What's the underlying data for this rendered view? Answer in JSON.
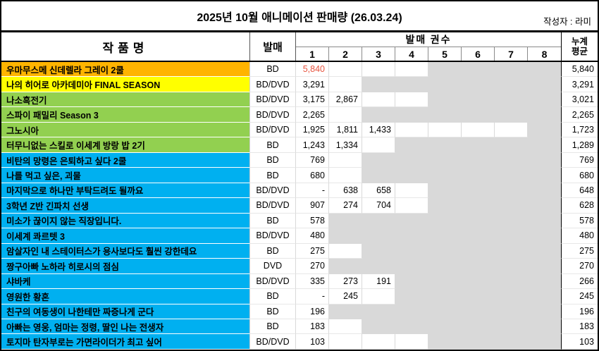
{
  "title": "2025년 10월 애니메이션 판매량 (26.03.24)",
  "author": "작성자 : 라미",
  "header": {
    "work_title": "작품명",
    "release": "발매",
    "release_volumes": "발매 권수",
    "cumulative_l1": "누계",
    "cumulative_l2": "평균"
  },
  "colors": {
    "orange": "#ffb400",
    "yellow": "#ffff00",
    "green": "#92d050",
    "blue": "#00b0f0",
    "gray_cell": "#d9d9d9",
    "red_text": "#e8543f"
  },
  "chart_data": {
    "type": "table",
    "title": "2025년 10월 애니메이션 판매량 (26.03.24)",
    "columns": [
      "작품명",
      "발매",
      "1",
      "2",
      "3",
      "4",
      "5",
      "6",
      "7",
      "8",
      "누계 평균"
    ],
    "vol_headers": [
      "1",
      "2",
      "3",
      "4",
      "5",
      "6",
      "7",
      "8"
    ],
    "rows": [
      {
        "title": "우마무스메 신데렐라 그레이 2쿨",
        "format": "BD",
        "color": "orange",
        "cells": [
          {
            "t": "5,840",
            "bg": "w",
            "red": true
          },
          {
            "t": "",
            "bg": "w"
          },
          {
            "t": "",
            "bg": "w"
          },
          {
            "t": "",
            "bg": "w"
          },
          {
            "t": "",
            "bg": "g"
          },
          {
            "t": "",
            "bg": "g"
          },
          {
            "t": "",
            "bg": "g"
          },
          {
            "t": "",
            "bg": "g"
          }
        ],
        "avg": "5,840"
      },
      {
        "title": "나의 히어로 아카데미아 FINAL SEASON",
        "format": "BD/DVD",
        "color": "yellow",
        "cells": [
          {
            "t": "3,291",
            "bg": "w"
          },
          {
            "t": "",
            "bg": "w"
          },
          {
            "t": "",
            "bg": "g"
          },
          {
            "t": "",
            "bg": "g"
          },
          {
            "t": "",
            "bg": "g"
          },
          {
            "t": "",
            "bg": "g"
          },
          {
            "t": "",
            "bg": "g"
          },
          {
            "t": "",
            "bg": "g"
          }
        ],
        "avg": "3,291"
      },
      {
        "title": "나소흑전기",
        "format": "BD/DVD",
        "color": "green",
        "cells": [
          {
            "t": "3,175",
            "bg": "w"
          },
          {
            "t": "2,867",
            "bg": "w"
          },
          {
            "t": "",
            "bg": "w"
          },
          {
            "t": "",
            "bg": "w"
          },
          {
            "t": "",
            "bg": "g"
          },
          {
            "t": "",
            "bg": "g"
          },
          {
            "t": "",
            "bg": "g"
          },
          {
            "t": "",
            "bg": "g"
          }
        ],
        "avg": "3,021"
      },
      {
        "title": "스파이 패밀리 Season 3",
        "format": "BD/DVD",
        "color": "green",
        "cells": [
          {
            "t": "2,265",
            "bg": "w"
          },
          {
            "t": "",
            "bg": "w"
          },
          {
            "t": "",
            "bg": "g"
          },
          {
            "t": "",
            "bg": "g"
          },
          {
            "t": "",
            "bg": "g"
          },
          {
            "t": "",
            "bg": "g"
          },
          {
            "t": "",
            "bg": "g"
          },
          {
            "t": "",
            "bg": "g"
          }
        ],
        "avg": "2,265"
      },
      {
        "title": "그노시아",
        "format": "BD/DVD",
        "color": "green",
        "cells": [
          {
            "t": "1,925",
            "bg": "w"
          },
          {
            "t": "1,811",
            "bg": "w"
          },
          {
            "t": "1,433",
            "bg": "w"
          },
          {
            "t": "",
            "bg": "w"
          },
          {
            "t": "",
            "bg": "w"
          },
          {
            "t": "",
            "bg": "w"
          },
          {
            "t": "",
            "bg": "w"
          },
          {
            "t": "",
            "bg": "g"
          }
        ],
        "avg": "1,723"
      },
      {
        "title": "터무니없는 스킬로 이세계 방랑 밥 2기",
        "format": "BD",
        "color": "green",
        "cells": [
          {
            "t": "1,243",
            "bg": "w"
          },
          {
            "t": "1,334",
            "bg": "w"
          },
          {
            "t": "",
            "bg": "w"
          },
          {
            "t": "",
            "bg": "g"
          },
          {
            "t": "",
            "bg": "g"
          },
          {
            "t": "",
            "bg": "g"
          },
          {
            "t": "",
            "bg": "g"
          },
          {
            "t": "",
            "bg": "g"
          }
        ],
        "avg": "1,289"
      },
      {
        "title": "비탄의 망령은 은퇴하고 싶다 2쿨",
        "format": "BD",
        "color": "blue",
        "cells": [
          {
            "t": "769",
            "bg": "w"
          },
          {
            "t": "",
            "bg": "w"
          },
          {
            "t": "",
            "bg": "g"
          },
          {
            "t": "",
            "bg": "g"
          },
          {
            "t": "",
            "bg": "g"
          },
          {
            "t": "",
            "bg": "g"
          },
          {
            "t": "",
            "bg": "g"
          },
          {
            "t": "",
            "bg": "g"
          }
        ],
        "avg": "769"
      },
      {
        "title": "나를 먹고 싶은, 괴물",
        "format": "BD",
        "color": "blue",
        "cells": [
          {
            "t": "680",
            "bg": "w"
          },
          {
            "t": "",
            "bg": "w"
          },
          {
            "t": "",
            "bg": "g"
          },
          {
            "t": "",
            "bg": "g"
          },
          {
            "t": "",
            "bg": "g"
          },
          {
            "t": "",
            "bg": "g"
          },
          {
            "t": "",
            "bg": "g"
          },
          {
            "t": "",
            "bg": "g"
          }
        ],
        "avg": "680"
      },
      {
        "title": "마지막으로 하나만 부탁드려도 될까요",
        "format": "BD/DVD",
        "color": "blue",
        "cells": [
          {
            "t": "-",
            "bg": "w"
          },
          {
            "t": "638",
            "bg": "w"
          },
          {
            "t": "658",
            "bg": "w"
          },
          {
            "t": "",
            "bg": "w"
          },
          {
            "t": "",
            "bg": "g"
          },
          {
            "t": "",
            "bg": "g"
          },
          {
            "t": "",
            "bg": "g"
          },
          {
            "t": "",
            "bg": "g"
          }
        ],
        "avg": "648"
      },
      {
        "title": "3학년 Z반 긴파치 선생",
        "format": "BD/DVD",
        "color": "blue",
        "cells": [
          {
            "t": "907",
            "bg": "w"
          },
          {
            "t": "274",
            "bg": "w"
          },
          {
            "t": "704",
            "bg": "w"
          },
          {
            "t": "",
            "bg": "w"
          },
          {
            "t": "",
            "bg": "g"
          },
          {
            "t": "",
            "bg": "g"
          },
          {
            "t": "",
            "bg": "g"
          },
          {
            "t": "",
            "bg": "g"
          }
        ],
        "avg": "628"
      },
      {
        "title": "미소가 끊이지 않는 직장입니다.",
        "format": "BD",
        "color": "blue",
        "cells": [
          {
            "t": "578",
            "bg": "w"
          },
          {
            "t": "",
            "bg": "g"
          },
          {
            "t": "",
            "bg": "g"
          },
          {
            "t": "",
            "bg": "g"
          },
          {
            "t": "",
            "bg": "g"
          },
          {
            "t": "",
            "bg": "g"
          },
          {
            "t": "",
            "bg": "g"
          },
          {
            "t": "",
            "bg": "g"
          }
        ],
        "avg": "578"
      },
      {
        "title": "이세계 콰르텟 3",
        "format": "BD/DVD",
        "color": "blue",
        "cells": [
          {
            "t": "480",
            "bg": "w"
          },
          {
            "t": "",
            "bg": "g"
          },
          {
            "t": "",
            "bg": "g"
          },
          {
            "t": "",
            "bg": "g"
          },
          {
            "t": "",
            "bg": "g"
          },
          {
            "t": "",
            "bg": "g"
          },
          {
            "t": "",
            "bg": "g"
          },
          {
            "t": "",
            "bg": "g"
          }
        ],
        "avg": "480"
      },
      {
        "title": "암살자인 내 스테이터스가 용사보다도 훨씬 강한데요",
        "format": "BD",
        "color": "blue",
        "cells": [
          {
            "t": "275",
            "bg": "w"
          },
          {
            "t": "",
            "bg": "w"
          },
          {
            "t": "",
            "bg": "g"
          },
          {
            "t": "",
            "bg": "g"
          },
          {
            "t": "",
            "bg": "g"
          },
          {
            "t": "",
            "bg": "g"
          },
          {
            "t": "",
            "bg": "g"
          },
          {
            "t": "",
            "bg": "g"
          }
        ],
        "avg": "275"
      },
      {
        "title": "짱구아빠 노하라 히로시의 점심",
        "format": "DVD",
        "color": "blue",
        "cells": [
          {
            "t": "270",
            "bg": "w"
          },
          {
            "t": "",
            "bg": "g"
          },
          {
            "t": "",
            "bg": "g"
          },
          {
            "t": "",
            "bg": "g"
          },
          {
            "t": "",
            "bg": "g"
          },
          {
            "t": "",
            "bg": "g"
          },
          {
            "t": "",
            "bg": "g"
          },
          {
            "t": "",
            "bg": "g"
          }
        ],
        "avg": "270"
      },
      {
        "title": "샤바케",
        "format": "BD/DVD",
        "color": "blue",
        "cells": [
          {
            "t": "335",
            "bg": "w"
          },
          {
            "t": "273",
            "bg": "w"
          },
          {
            "t": "191",
            "bg": "w"
          },
          {
            "t": "",
            "bg": "g"
          },
          {
            "t": "",
            "bg": "g"
          },
          {
            "t": "",
            "bg": "g"
          },
          {
            "t": "",
            "bg": "g"
          },
          {
            "t": "",
            "bg": "g"
          }
        ],
        "avg": "266"
      },
      {
        "title": "영원한 황혼",
        "format": "BD",
        "color": "blue",
        "cells": [
          {
            "t": "-",
            "bg": "w"
          },
          {
            "t": "245",
            "bg": "w"
          },
          {
            "t": "",
            "bg": "w"
          },
          {
            "t": "",
            "bg": "g"
          },
          {
            "t": "",
            "bg": "g"
          },
          {
            "t": "",
            "bg": "g"
          },
          {
            "t": "",
            "bg": "g"
          },
          {
            "t": "",
            "bg": "g"
          }
        ],
        "avg": "245"
      },
      {
        "title": "친구의 여동생이 나한테만 짜증나게 군다",
        "format": "BD",
        "color": "blue",
        "cells": [
          {
            "t": "196",
            "bg": "w"
          },
          {
            "t": "",
            "bg": "g"
          },
          {
            "t": "",
            "bg": "g"
          },
          {
            "t": "",
            "bg": "g"
          },
          {
            "t": "",
            "bg": "g"
          },
          {
            "t": "",
            "bg": "g"
          },
          {
            "t": "",
            "bg": "g"
          },
          {
            "t": "",
            "bg": "g"
          }
        ],
        "avg": "196"
      },
      {
        "title": "아빠는 영웅, 엄마는 정령, 딸인 나는 전생자",
        "format": "BD",
        "color": "blue",
        "cells": [
          {
            "t": "183",
            "bg": "w"
          },
          {
            "t": "",
            "bg": "w"
          },
          {
            "t": "",
            "bg": "g"
          },
          {
            "t": "",
            "bg": "g"
          },
          {
            "t": "",
            "bg": "g"
          },
          {
            "t": "",
            "bg": "g"
          },
          {
            "t": "",
            "bg": "g"
          },
          {
            "t": "",
            "bg": "g"
          }
        ],
        "avg": "183"
      },
      {
        "title": "토지마 탄자부로는 가면라이더가 최고 싶어",
        "format": "BD/DVD",
        "color": "blue",
        "cells": [
          {
            "t": "103",
            "bg": "w"
          },
          {
            "t": "",
            "bg": "w"
          },
          {
            "t": "",
            "bg": "w"
          },
          {
            "t": "",
            "bg": "w"
          },
          {
            "t": "",
            "bg": "g"
          },
          {
            "t": "",
            "bg": "g"
          },
          {
            "t": "",
            "bg": "g"
          },
          {
            "t": "",
            "bg": "g"
          }
        ],
        "avg": "103"
      }
    ]
  }
}
